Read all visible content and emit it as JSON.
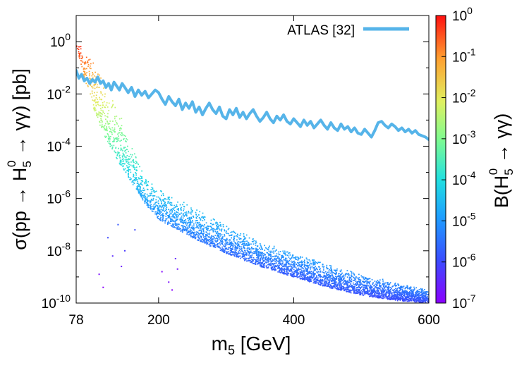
{
  "chart_data": {
    "type": "scatter",
    "xlabel_main": "m",
    "xlabel_sub": "5",
    "xlabel_rest": " [GeV]",
    "ylabel_parts": {
      "pre": "σ(pp → H",
      "sub": "5",
      "sup": "0",
      "post": " → γγ) [pb]"
    },
    "colorbar_label_parts": {
      "pre": "B(H",
      "sub": "5",
      "sup": "0",
      "post": " → γγ)"
    },
    "xlim": [
      78,
      600
    ],
    "ylim_log10": [
      -10,
      1
    ],
    "x_ticks": [
      {
        "value": 78,
        "label": "78"
      },
      {
        "value": 200,
        "label": "200"
      },
      {
        "value": 400,
        "label": "400"
      },
      {
        "value": 600,
        "label": "600"
      }
    ],
    "y_ticks": [
      {
        "exp": 0,
        "base": "10",
        "sup": "0"
      },
      {
        "exp": -2,
        "base": "10",
        "sup": "-2"
      },
      {
        "exp": -4,
        "base": "10",
        "sup": "-4"
      },
      {
        "exp": -6,
        "base": "10",
        "sup": "-6"
      },
      {
        "exp": -8,
        "base": "10",
        "sup": "-8"
      },
      {
        "exp": -10,
        "base": "10",
        "sup": "-10"
      }
    ],
    "colorbar_range_log10": [
      -7,
      0
    ],
    "colorbar_ticks": [
      {
        "exp": 0,
        "base": "10",
        "sup": "0"
      },
      {
        "exp": -1,
        "base": "10",
        "sup": "-1"
      },
      {
        "exp": -2,
        "base": "10",
        "sup": "-2"
      },
      {
        "exp": -3,
        "base": "10",
        "sup": "-3"
      },
      {
        "exp": -4,
        "base": "10",
        "sup": "-4"
      },
      {
        "exp": -5,
        "base": "10",
        "sup": "-5"
      },
      {
        "exp": -6,
        "base": "10",
        "sup": "-6"
      },
      {
        "exp": -7,
        "base": "10",
        "sup": "-7"
      }
    ],
    "legend": {
      "label": "ATLAS [32]",
      "position": "top-right",
      "color": "#56b4e9"
    },
    "series": [
      {
        "name": "ATLAS [32]",
        "kind": "line",
        "color": "#56b4e9",
        "x": [
          78,
          82,
          86,
          90,
          94,
          98,
          102,
          106,
          110,
          114,
          118,
          122,
          126,
          130,
          134,
          138,
          142,
          146,
          150,
          155,
          160,
          165,
          170,
          175,
          180,
          185,
          190,
          195,
          200,
          205,
          210,
          215,
          220,
          225,
          230,
          235,
          240,
          245,
          250,
          255,
          260,
          265,
          270,
          275,
          280,
          285,
          290,
          295,
          300,
          305,
          310,
          315,
          320,
          325,
          330,
          335,
          340,
          345,
          350,
          355,
          360,
          365,
          370,
          375,
          380,
          385,
          390,
          395,
          400,
          405,
          410,
          415,
          420,
          425,
          430,
          435,
          440,
          445,
          450,
          455,
          460,
          465,
          470,
          475,
          480,
          485,
          490,
          495,
          500,
          505,
          510,
          515,
          520,
          525,
          530,
          535,
          540,
          545,
          550,
          555,
          560,
          565,
          570,
          575,
          580,
          585,
          590,
          595,
          600
        ],
        "log10y": [
          -1.1,
          -1.4,
          -1.25,
          -1.5,
          -1.4,
          -1.6,
          -1.45,
          -1.55,
          -1.35,
          -1.6,
          -1.5,
          -1.75,
          -1.6,
          -1.85,
          -1.55,
          -1.7,
          -1.85,
          -1.6,
          -1.75,
          -1.95,
          -1.75,
          -2.1,
          -1.85,
          -2.05,
          -1.9,
          -2.15,
          -2.0,
          -1.85,
          -1.95,
          -2.2,
          -2.4,
          -2.1,
          -2.3,
          -2.45,
          -2.2,
          -2.6,
          -2.35,
          -2.55,
          -2.3,
          -2.7,
          -2.5,
          -2.8,
          -2.55,
          -2.35,
          -2.6,
          -2.75,
          -2.5,
          -2.85,
          -2.95,
          -2.6,
          -2.8,
          -2.55,
          -2.9,
          -2.7,
          -2.95,
          -2.75,
          -2.6,
          -2.85,
          -3.05,
          -2.9,
          -2.7,
          -2.95,
          -3.1,
          -2.85,
          -3.0,
          -2.8,
          -3.05,
          -3.15,
          -2.95,
          -3.1,
          -3.25,
          -3.0,
          -3.2,
          -3.05,
          -3.3,
          -3.15,
          -3.0,
          -3.2,
          -3.35,
          -3.1,
          -3.3,
          -3.4,
          -3.15,
          -3.35,
          -3.25,
          -3.45,
          -3.3,
          -3.5,
          -3.55,
          -3.35,
          -3.5,
          -3.65,
          -3.4,
          -3.1,
          -3.05,
          -3.2,
          -3.3,
          -3.15,
          -3.25,
          -3.4,
          -3.3,
          -3.45,
          -3.35,
          -3.5,
          -3.4,
          -3.55,
          -3.6,
          -3.65,
          -3.75
        ]
      },
      {
        "name": "scan points",
        "kind": "scatter",
        "colored_by": "log10 B(H5^0 -> γγ)",
        "envelope": {
          "x": [
            78,
            90,
            100,
            110,
            120,
            130,
            140,
            150,
            160,
            170,
            180,
            200,
            250,
            300,
            350,
            400,
            450,
            500,
            550,
            600
          ],
          "upper_log10y": [
            0.0,
            -0.2,
            -0.6,
            -1.1,
            -1.6,
            -2.1,
            -2.6,
            -3.2,
            -4.0,
            -4.6,
            -5.1,
            -5.6,
            -6.3,
            -7.0,
            -7.6,
            -8.1,
            -8.5,
            -8.9,
            -9.2,
            -9.5
          ],
          "lower_log10y": [
            -0.2,
            -1.4,
            -2.3,
            -3.0,
            -3.6,
            -4.1,
            -4.6,
            -5.0,
            -5.4,
            -5.8,
            -6.2,
            -6.8,
            -7.5,
            -8.1,
            -8.6,
            -9.0,
            -9.4,
            -9.7,
            -9.9,
            -10.0
          ],
          "br_log10_upper": [
            0.0,
            -0.3,
            -0.7,
            -1.1,
            -1.5,
            -2.0,
            -2.4,
            -2.8,
            -3.2,
            -3.6,
            -3.9,
            -4.2,
            -4.4,
            -4.6,
            -4.7,
            -4.8,
            -4.9,
            -5.0,
            -5.1,
            -5.1
          ],
          "br_log10_lower": [
            -0.3,
            -1.2,
            -2.0,
            -2.6,
            -3.1,
            -3.5,
            -3.9,
            -4.2,
            -4.5,
            -4.8,
            -5.0,
            -5.2,
            -5.4,
            -5.6,
            -5.7,
            -5.8,
            -5.8,
            -5.9,
            -6.0,
            -6.0
          ]
        },
        "outliers": [
          {
            "x": 112,
            "log10y": -8.9,
            "br_log10": -6.8
          },
          {
            "x": 118,
            "log10y": -9.4,
            "br_log10": -7.0
          },
          {
            "x": 125,
            "log10y": -7.5,
            "br_log10": -6.0
          },
          {
            "x": 132,
            "log10y": -8.2,
            "br_log10": -6.4
          },
          {
            "x": 140,
            "log10y": -7.0,
            "br_log10": -5.8
          },
          {
            "x": 145,
            "log10y": -8.6,
            "br_log10": -6.6
          },
          {
            "x": 150,
            "log10y": -8.0,
            "br_log10": -6.2
          },
          {
            "x": 165,
            "log10y": -7.2,
            "br_log10": -6.0
          },
          {
            "x": 205,
            "log10y": -8.8,
            "br_log10": -6.9
          },
          {
            "x": 215,
            "log10y": -9.2,
            "br_log10": -6.8
          },
          {
            "x": 220,
            "log10y": -9.5,
            "br_log10": -7.0
          },
          {
            "x": 225,
            "log10y": -8.3,
            "br_log10": -6.5
          },
          {
            "x": 228,
            "log10y": -8.7,
            "br_log10": -6.7
          }
        ]
      }
    ]
  }
}
